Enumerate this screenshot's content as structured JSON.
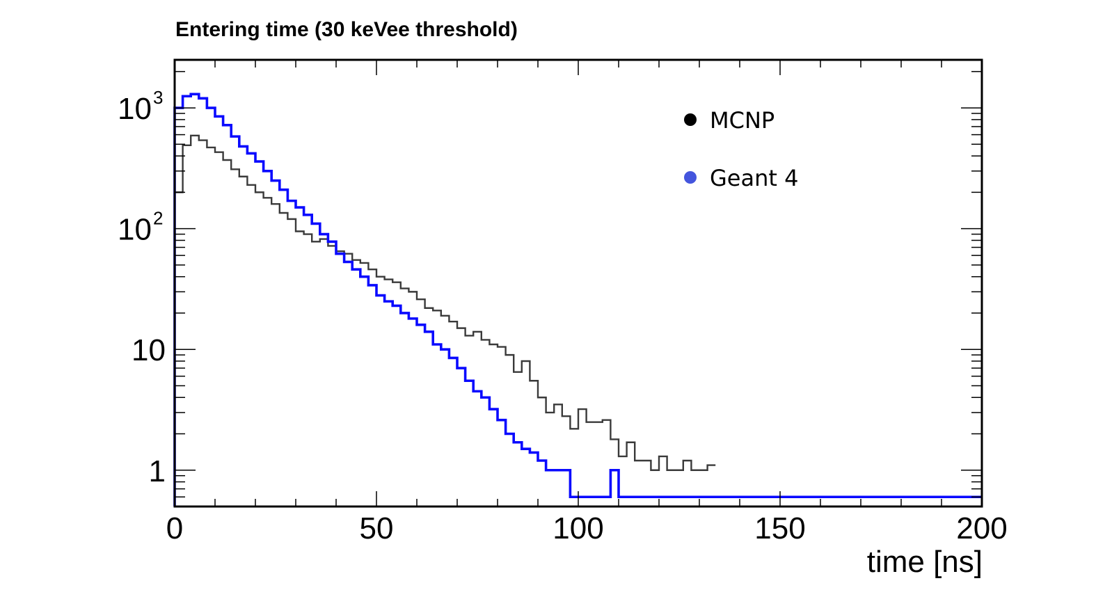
{
  "chart_data": {
    "type": "line",
    "step": true,
    "title": "Entering time (30 keVee threshold)",
    "xlabel": "time [ns]",
    "ylabel": "",
    "xlim": [
      0,
      200
    ],
    "ylim": [
      0.5,
      2500
    ],
    "yscale": "log",
    "grid": false,
    "legend_position": "top-right",
    "x_ticks": [
      {
        "value": 0,
        "label": "0"
      },
      {
        "value": 50,
        "label": "50"
      },
      {
        "value": 100,
        "label": "100"
      },
      {
        "value": 150,
        "label": "150"
      },
      {
        "value": 200,
        "label": "200"
      }
    ],
    "y_ticks": [
      {
        "value": 1,
        "base": "1",
        "exp": ""
      },
      {
        "value": 10,
        "base": "10",
        "exp": ""
      },
      {
        "value": 100,
        "base": "10",
        "exp": "2"
      },
      {
        "value": 1000,
        "base": "10",
        "exp": "3"
      }
    ],
    "bin_width": 2,
    "series": [
      {
        "name": "MCNP",
        "legend_marker_color": "#000000",
        "line_color": "#3a3a3a",
        "x_start": 0,
        "values": [
          200,
          490,
          590,
          540,
          470,
          430,
          370,
          310,
          270,
          230,
          200,
          180,
          160,
          135,
          120,
          95,
          90,
          78,
          82,
          72,
          65,
          62,
          55,
          52,
          46,
          40,
          38,
          36,
          32,
          30,
          26,
          22,
          21,
          19,
          17,
          15,
          13,
          14,
          12,
          11,
          10.5,
          9,
          6.5,
          8,
          5.5,
          4,
          3,
          3.5,
          2.8,
          2.2,
          3.2,
          2.5,
          2.5,
          2.6,
          1.8,
          1.3,
          1.7,
          1.2,
          1.2,
          1.0,
          1.3,
          1.0,
          1.0,
          1.2,
          1.0,
          1.0,
          1.1
        ]
      },
      {
        "name": "Geant 4",
        "legend_marker_color": "#4455dd",
        "line_color": "#0a0aff",
        "x_start": 0,
        "values": [
          1000,
          1250,
          1300,
          1200,
          1000,
          850,
          720,
          580,
          480,
          420,
          360,
          300,
          250,
          210,
          170,
          150,
          130,
          110,
          90,
          78,
          62,
          53,
          46,
          40,
          34,
          28,
          25,
          23,
          20,
          18,
          16,
          14,
          11,
          10,
          8.5,
          7,
          5.5,
          4.5,
          4,
          3.2,
          2.6,
          2.0,
          1.7,
          1.5,
          1.4,
          1.2,
          1.0,
          1.0,
          1.0,
          0.6,
          0.6,
          0.6,
          0.6,
          0.6,
          1.0,
          0.6,
          0.6,
          0.6,
          0.6,
          0.6,
          0.6,
          0.6,
          0.6,
          0.6,
          0.6,
          0.6,
          0.6,
          0.6,
          0.6,
          0.6,
          0.6,
          0.6,
          0.6,
          0.6,
          0.6,
          0.6,
          0.6,
          0.6,
          0.6,
          0.6,
          0.6,
          0.6,
          0.6,
          0.6,
          0.6,
          0.6,
          0.6,
          0.6,
          0.6,
          0.6,
          0.6,
          0.6,
          0.6,
          0.6,
          0.6,
          0.6,
          0.6,
          0.6,
          0.6,
          0.6
        ]
      }
    ]
  }
}
